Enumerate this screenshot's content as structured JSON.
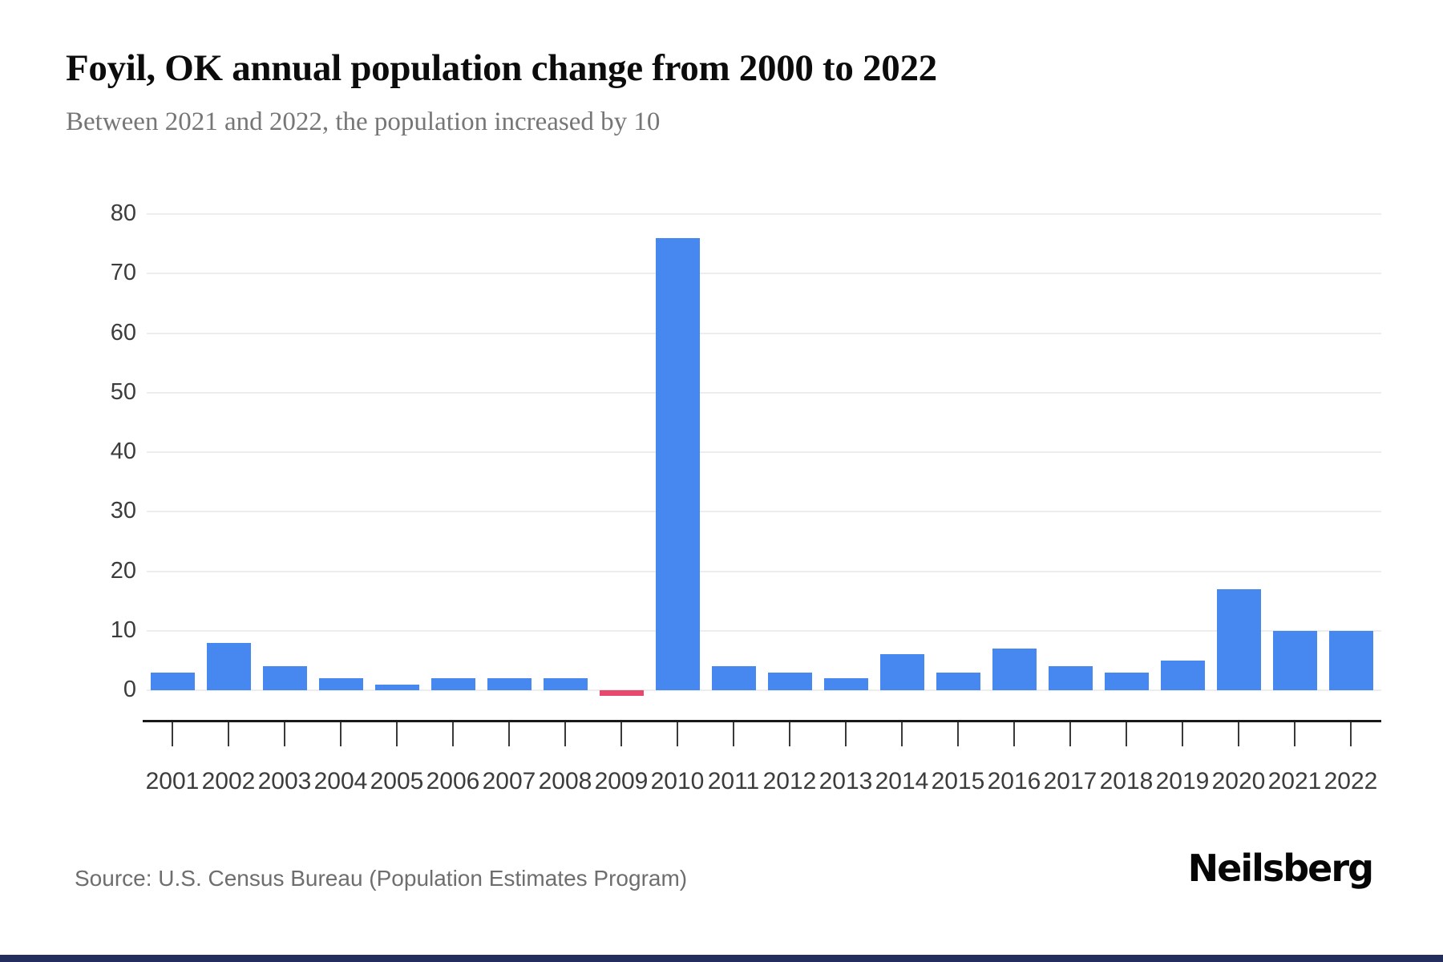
{
  "header": {
    "title": "Foyil, OK annual population change from 2000 to 2022",
    "subtitle": "Between 2021 and 2022, the population increased by 10"
  },
  "footer": {
    "source": "Source: U.S. Census Bureau (Population Estimates Program)",
    "brand": "Neilsberg",
    "strip_color": "#232e5c"
  },
  "chart_data": {
    "type": "bar",
    "title": "Foyil, OK annual population change from 2000 to 2022",
    "xlabel": "",
    "ylabel": "",
    "categories": [
      "2001",
      "2002",
      "2003",
      "2004",
      "2005",
      "2006",
      "2007",
      "2008",
      "2009",
      "2010",
      "2011",
      "2012",
      "2013",
      "2014",
      "2015",
      "2016",
      "2017",
      "2018",
      "2019",
      "2020",
      "2021",
      "2022"
    ],
    "values": [
      3,
      8,
      4,
      2,
      1,
      2,
      2,
      2,
      -1,
      76,
      4,
      3,
      2,
      6,
      3,
      7,
      4,
      3,
      5,
      17,
      10,
      10
    ],
    "yticks": [
      0,
      10,
      20,
      30,
      40,
      50,
      60,
      70,
      80
    ],
    "ylim": [
      0,
      80
    ],
    "grid": true,
    "legend": false,
    "bar_color": "#4687f0",
    "negative_bar_color": "#e8486d",
    "gridline_color": "#ededed",
    "axis_color": "#1a1a1a"
  }
}
